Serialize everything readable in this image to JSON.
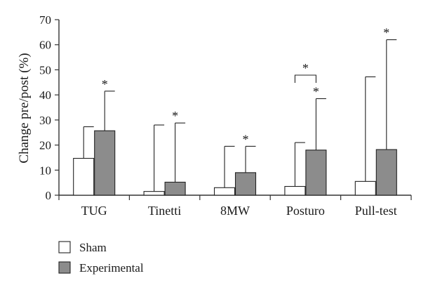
{
  "chart_data": {
    "type": "bar",
    "ylabel": "Change pre/post (%)",
    "xlabel": "",
    "ylim": [
      0,
      70
    ],
    "yticks": [
      0,
      10,
      20,
      30,
      40,
      50,
      60,
      70
    ],
    "categories": [
      "TUG",
      "Tinetti",
      "8MW",
      "Posturo",
      "Pull-test"
    ],
    "series": [
      {
        "name": "Sham",
        "color": "#ffffff",
        "values": [
          14.7,
          1.5,
          3.0,
          3.5,
          5.5
        ],
        "error_upper": [
          27.3,
          28.0,
          19.5,
          21.0,
          47.2
        ],
        "significance": [
          "",
          "",
          "",
          "",
          ""
        ]
      },
      {
        "name": "Experimental",
        "color": "#8c8c8c",
        "values": [
          25.7,
          5.2,
          9.0,
          18.0,
          18.2
        ],
        "error_upper": [
          41.5,
          28.8,
          19.5,
          38.5,
          62.0
        ],
        "significance": [
          "*",
          "*",
          "*",
          "*",
          "*"
        ]
      }
    ],
    "comparisons": [
      {
        "category": "Posturo",
        "label": "*"
      }
    ],
    "grid": false,
    "legend_position": "bottom-left"
  }
}
